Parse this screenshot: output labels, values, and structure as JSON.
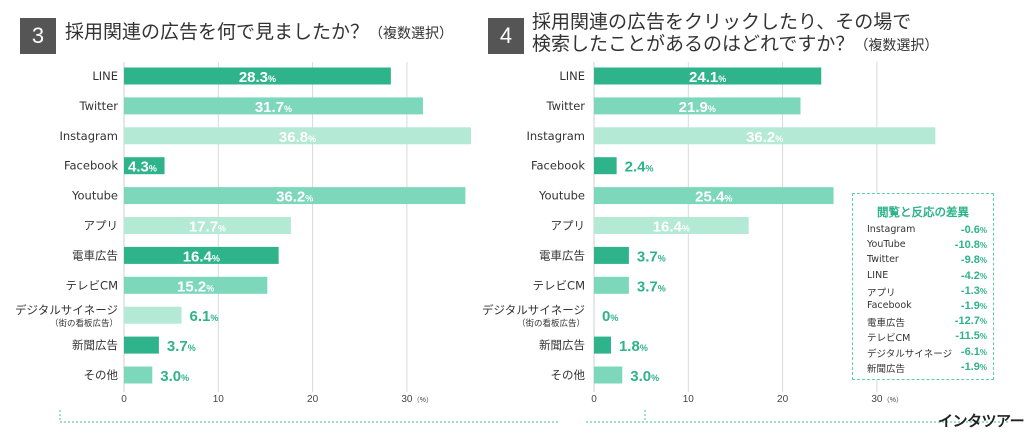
{
  "panels": [
    {
      "number": "3",
      "title_lines": [
        "採用関連の広告を何で見ましたか？"
      ],
      "title_sub": "（複数選択）"
    },
    {
      "number": "4",
      "title_lines": [
        "採用関連の広告をクリックしたり、その場で",
        "検索したことがあるのはどれですか？"
      ],
      "title_sub": "（複数選択）"
    }
  ],
  "chart_data": [
    {
      "type": "bar",
      "orientation": "horizontal",
      "title": "採用関連の広告を何で見ましたか？（複数選択）",
      "categories": [
        "LINE",
        "Twitter",
        "Instagram",
        "Facebook",
        "Youtube",
        "アプリ",
        "電車広告",
        "テレビCM",
        "デジタルサイネージ",
        "新聞広告",
        "その他"
      ],
      "category_notes": {
        "デジタルサイネージ": "（街の看板広告）"
      },
      "values": [
        28.3,
        31.7,
        36.8,
        4.3,
        36.2,
        17.7,
        16.4,
        15.2,
        6.1,
        3.7,
        3.0
      ],
      "value_labels": [
        "28.3",
        "31.7",
        "36.8",
        "4.3",
        "36.2",
        "17.7",
        "16.4",
        "15.2",
        "6.1",
        "3.7",
        "3.0"
      ],
      "unit": "%",
      "xlim": [
        0,
        37
      ],
      "xticks": [
        "0",
        "10",
        "20",
        "30"
      ],
      "xunit_label": "（%）"
    },
    {
      "type": "bar",
      "orientation": "horizontal",
      "title": "採用関連の広告をクリックしたり、その場で検索したことがあるのはどれですか？（複数選択）",
      "categories": [
        "LINE",
        "Twitter",
        "Instagram",
        "Facebook",
        "Youtube",
        "アプリ",
        "電車広告",
        "テレビCM",
        "デジタルサイネージ",
        "新聞広告",
        "その他"
      ],
      "category_notes": {
        "デジタルサイネージ": "（街の看板広告）"
      },
      "values": [
        24.1,
        21.9,
        36.2,
        2.4,
        25.4,
        16.4,
        3.7,
        3.7,
        0,
        1.8,
        3.0
      ],
      "value_labels": [
        "24.1",
        "21.9",
        "36.2",
        "2.4",
        "25.4",
        "16.4",
        "3.7",
        "3.7",
        "0",
        "1.8",
        "3.0"
      ],
      "unit": "%",
      "xlim": [
        0,
        37
      ],
      "xticks": [
        "0",
        "10",
        "20",
        "30"
      ],
      "xunit_label": "（%）"
    }
  ],
  "bar_colors": [
    "#2eb38b",
    "#7dd8bb",
    "#b4e9d6",
    "#2eb38b",
    "#7dd8bb",
    "#b4e9d6",
    "#2eb38b",
    "#7dd8bb",
    "#b4e9d6",
    "#2eb38b",
    "#7dd8bb"
  ],
  "difference_box": {
    "title": "閲覧と反応の差異",
    "rows": [
      {
        "label": "Instagram",
        "value": "-0.6"
      },
      {
        "label": "YouTube",
        "value": "-10.8"
      },
      {
        "label": "Twitter",
        "value": "-9.8"
      },
      {
        "label": "LINE",
        "value": "-4.2"
      },
      {
        "label": "アプリ",
        "value": "-1.3"
      },
      {
        "label": "Facebook",
        "value": "-1.9"
      },
      {
        "label": "電車広告",
        "value": "-12.7"
      },
      {
        "label": "テレビCM",
        "value": "-11.5"
      },
      {
        "label": "デジタルサイネージ",
        "value": "-6.1"
      },
      {
        "label": "新聞広告",
        "value": "-1.9"
      }
    ],
    "unit": "%"
  },
  "logo_text": "インタツアー"
}
